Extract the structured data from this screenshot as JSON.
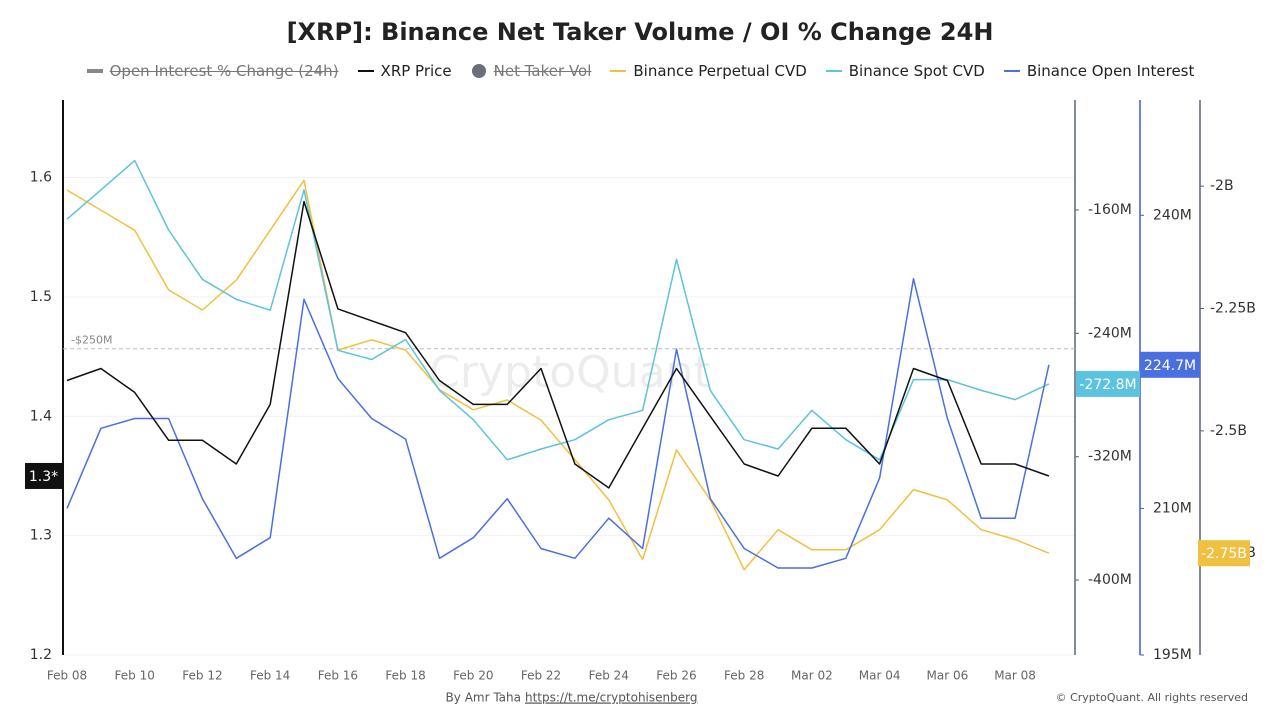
{
  "chart_data": {
    "type": "line",
    "title": "[XRP]: Binance Net Taker Volume / OI % Change 24H",
    "categories": [
      "Feb 08",
      null,
      "Feb 10",
      null,
      "Feb 12",
      null,
      "Feb 14",
      null,
      "Feb 16",
      null,
      "Feb 18",
      null,
      "Feb 20",
      null,
      "Feb 22",
      null,
      "Feb 24",
      null,
      "Feb 26",
      null,
      "Feb 28",
      null,
      "Mar 02",
      null,
      "Mar 04",
      null,
      "Mar 06",
      null,
      "Mar 08",
      null
    ],
    "legend_hidden": [
      {
        "name": "Open Interest % Change (24h)",
        "color": "#888888",
        "symbol": "line"
      },
      {
        "name": "Net Taker Vol",
        "color": "#6b6f7a",
        "symbol": "circle"
      }
    ],
    "series": [
      {
        "name": "XRP Price",
        "color": "#111111",
        "axis": "y",
        "last_label": "1.3*",
        "values": [
          1.43,
          1.44,
          1.42,
          1.38,
          1.38,
          1.36,
          1.41,
          1.58,
          1.49,
          1.48,
          1.47,
          1.43,
          1.41,
          1.41,
          1.44,
          1.36,
          1.34,
          1.39,
          1.44,
          1.4,
          1.36,
          1.35,
          1.39,
          1.39,
          1.36,
          1.44,
          1.43,
          1.36,
          1.36,
          1.35
        ]
      },
      {
        "name": "Binance Perpetual CVD",
        "color": "#f0c040",
        "axis": "y4",
        "last_label": "-2.75B",
        "values": [
          -2.008,
          -2.049,
          -2.09,
          -2.212,
          -2.253,
          -2.192,
          -2.09,
          -1.988,
          -2.335,
          -2.314,
          -2.335,
          -2.416,
          -2.457,
          -2.437,
          -2.478,
          -2.559,
          -2.641,
          -2.763,
          -2.539,
          -2.641,
          -2.784,
          -2.702,
          -2.743,
          -2.743,
          -2.702,
          -2.62,
          -2.641,
          -2.702,
          -2.722,
          -2.75
        ]
      },
      {
        "name": "Binance Spot CVD",
        "color": "#5bc3dd",
        "axis": "y2",
        "last_label": "-272.8M",
        "values": [
          -166,
          -147,
          -128,
          -173,
          -205,
          -218,
          -225,
          -147,
          -251,
          -257,
          -244,
          -277,
          -296,
          -322,
          -315,
          -309,
          -296,
          -290,
          -192,
          -277,
          -309,
          -315,
          -290,
          -309,
          -322,
          -270,
          -270,
          -277,
          -283,
          -272.8
        ]
      },
      {
        "name": "Binance Open Interest",
        "color": "#4a6fe0",
        "axis": "y3",
        "last_label": "224.7M",
        "values": [
          210.0,
          218.2,
          219.2,
          219.2,
          211.0,
          204.9,
          207.0,
          231.4,
          223.3,
          219.2,
          217.1,
          204.9,
          207.0,
          211.0,
          205.9,
          204.9,
          209.0,
          205.9,
          226.3,
          211.0,
          205.9,
          203.9,
          203.9,
          204.9,
          213.1,
          233.5,
          219.2,
          209.0,
          209.0,
          224.7
        ]
      }
    ],
    "ylim": [
      1.2,
      1.665
    ],
    "yticks": [
      1.2,
      1.3,
      1.4,
      1.5,
      1.6
    ],
    "y2lim": [
      -448.6,
      -88.7
    ],
    "y2ticks": [
      {
        "value": -160,
        "label": "-160M"
      },
      {
        "value": -240,
        "label": "-240M"
      },
      {
        "value": -320,
        "label": "-320M"
      },
      {
        "value": -400,
        "label": "-400M"
      }
    ],
    "y3lim": [
      195,
      251.8
    ],
    "y3ticks": [
      {
        "value": 195,
        "label": "195M"
      },
      {
        "value": 210,
        "label": "210M"
      },
      {
        "value": 240,
        "label": "240M"
      }
    ],
    "y4lim": [
      -2.958,
      -1.824
    ],
    "y4ticks": [
      {
        "value": -2,
        "label": "-2B"
      },
      {
        "value": -2.25,
        "label": "-2.25B"
      },
      {
        "value": -2.5,
        "label": "-2.5B"
      },
      {
        "value": -2.75,
        "label": "-2.75B"
      }
    ],
    "reference_line": {
      "value": -250,
      "label": "-$250M",
      "axis": "y2"
    },
    "grid": true,
    "watermark": "CryptoQuant",
    "footer": {
      "author": "By Amr Taha",
      "link": "https://t.me/cryptohisenberg",
      "copyright": "© CryptoQuant. All rights reserved"
    }
  }
}
